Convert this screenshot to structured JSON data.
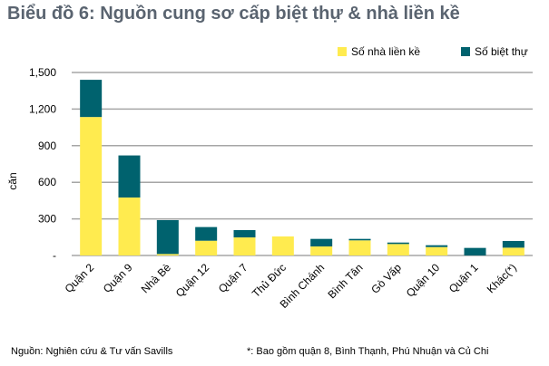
{
  "title": "Biểu đồ 6: Nguồn cung sơ cấp biệt thự & nhà liền kề",
  "source": "Nguồn: Nghiên cứu & Tư vấn Savills",
  "footnote": "*: Bao gồm quận 8, Bình Thạnh, Phú Nhuận và Củ Chi",
  "chart_data": {
    "type": "bar",
    "stacked": true,
    "ylabel": "căn",
    "xlabel": "",
    "ylim": [
      0,
      1500
    ],
    "yticks": [
      0,
      300,
      600,
      900,
      1200,
      1500
    ],
    "ytick_labels": [
      "-",
      "300",
      "600",
      "900",
      "1,200",
      "1,500"
    ],
    "grid": true,
    "legend_position": "top-right",
    "categories": [
      "Quận 2",
      "Quận 9",
      "Nhà Bè",
      "Quận 12",
      "Quận 7",
      "Thủ Đức",
      "Bình Chánh",
      "Bình Tân",
      "Gò Vấp",
      "Quận 10",
      "Quận 1",
      "Khác(*)"
    ],
    "series": [
      {
        "name": "Số nhà liền kề",
        "color": "#FFEB4F",
        "values": [
          1135,
          475,
          12,
          121,
          148,
          156,
          74,
          124,
          94,
          69,
          0,
          64
        ]
      },
      {
        "name": "Số biệt thự",
        "color": "#00626E",
        "values": [
          305,
          345,
          278,
          112,
          60,
          0,
          62,
          12,
          12,
          15,
          62,
          55
        ]
      }
    ]
  }
}
